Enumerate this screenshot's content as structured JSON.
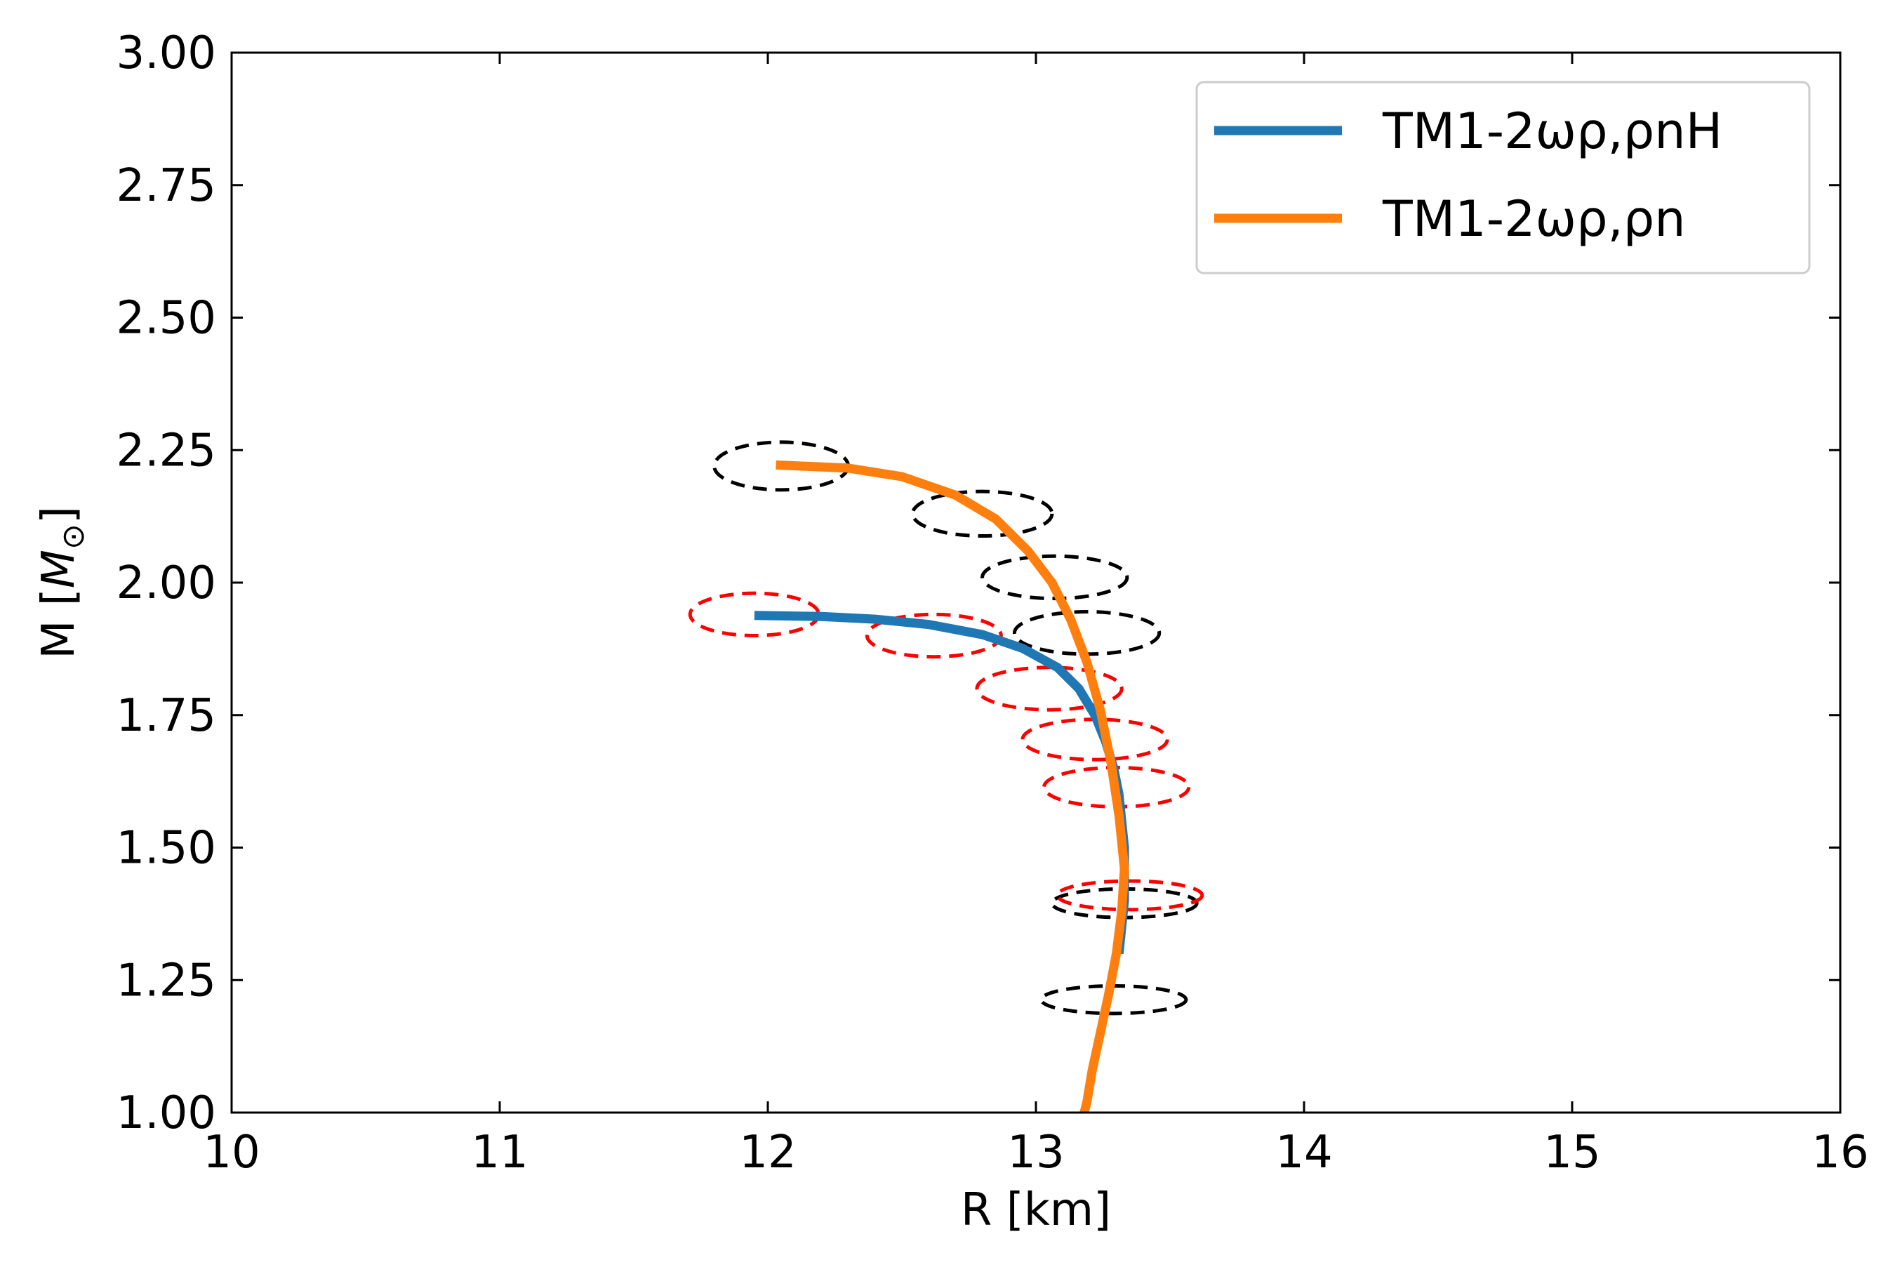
{
  "chart_data": {
    "type": "line",
    "title": "",
    "xlabel": "R [km]",
    "ylabel_text": "M [",
    "ylabel_symbol": "M",
    "ylabel_subscript": "⊙",
    "ylabel_close": "]",
    "xlim": [
      10,
      16
    ],
    "ylim": [
      1.0,
      3.0
    ],
    "xticks": [
      10,
      11,
      12,
      13,
      14,
      15,
      16
    ],
    "xtick_labels": [
      "10",
      "11",
      "12",
      "13",
      "14",
      "15",
      "16"
    ],
    "yticks": [
      1.0,
      1.25,
      1.5,
      1.75,
      2.0,
      2.25,
      2.5,
      2.75,
      3.0
    ],
    "ytick_labels": [
      "1.00",
      "1.25",
      "1.50",
      "1.75",
      "2.00",
      "2.25",
      "2.50",
      "2.75",
      "3.00"
    ],
    "grid": false,
    "legend_position": "top-right",
    "series": [
      {
        "name": "TM1-2ωρ,ρnH",
        "color": "#1f77b4",
        "points": [
          [
            11.95,
            1.938
          ],
          [
            12.2,
            1.936
          ],
          [
            12.4,
            1.931
          ],
          [
            12.6,
            1.921
          ],
          [
            12.8,
            1.902
          ],
          [
            12.95,
            1.876
          ],
          [
            13.08,
            1.84
          ],
          [
            13.16,
            1.8
          ],
          [
            13.22,
            1.75
          ],
          [
            13.26,
            1.7
          ],
          [
            13.29,
            1.65
          ],
          [
            13.31,
            1.6
          ],
          [
            13.32,
            1.55
          ],
          [
            13.33,
            1.5
          ],
          [
            13.33,
            1.45
          ],
          [
            13.33,
            1.4
          ],
          [
            13.32,
            1.35
          ],
          [
            13.31,
            1.3
          ]
        ]
      },
      {
        "name": "TM1-2ωρ,ρn",
        "color": "#ff7f0e",
        "points": [
          [
            12.03,
            2.222
          ],
          [
            12.3,
            2.216
          ],
          [
            12.5,
            2.2
          ],
          [
            12.7,
            2.165
          ],
          [
            12.85,
            2.12
          ],
          [
            12.97,
            2.06
          ],
          [
            13.06,
            2.0
          ],
          [
            13.13,
            1.93
          ],
          [
            13.19,
            1.85
          ],
          [
            13.24,
            1.76
          ],
          [
            13.28,
            1.66
          ],
          [
            13.31,
            1.56
          ],
          [
            13.33,
            1.46
          ],
          [
            13.32,
            1.38
          ],
          [
            13.3,
            1.3
          ],
          [
            13.27,
            1.22
          ],
          [
            13.24,
            1.15
          ],
          [
            13.21,
            1.08
          ],
          [
            13.19,
            1.02
          ],
          [
            13.18,
            1.0
          ]
        ]
      }
    ],
    "ellipses": [
      {
        "color": "#000000",
        "cx": 12.05,
        "cy": 2.22,
        "rx": 0.25,
        "ry": 0.045
      },
      {
        "color": "#000000",
        "cx": 12.8,
        "cy": 2.13,
        "rx": 0.26,
        "ry": 0.042
      },
      {
        "color": "#000000",
        "cx": 13.07,
        "cy": 2.01,
        "rx": 0.27,
        "ry": 0.04
      },
      {
        "color": "#000000",
        "cx": 13.19,
        "cy": 1.905,
        "rx": 0.27,
        "ry": 0.04
      },
      {
        "color": "#000000",
        "cx": 13.33,
        "cy": 1.395,
        "rx": 0.27,
        "ry": 0.027
      },
      {
        "color": "#000000",
        "cx": 13.29,
        "cy": 1.213,
        "rx": 0.27,
        "ry": 0.026
      },
      {
        "color": "#ff0000",
        "cx": 11.95,
        "cy": 1.94,
        "rx": 0.24,
        "ry": 0.04
      },
      {
        "color": "#ff0000",
        "cx": 12.62,
        "cy": 1.9,
        "rx": 0.25,
        "ry": 0.04
      },
      {
        "color": "#ff0000",
        "cx": 13.05,
        "cy": 1.8,
        "rx": 0.27,
        "ry": 0.04
      },
      {
        "color": "#ff0000",
        "cx": 13.22,
        "cy": 1.704,
        "rx": 0.27,
        "ry": 0.038
      },
      {
        "color": "#ff0000",
        "cx": 13.3,
        "cy": 1.614,
        "rx": 0.27,
        "ry": 0.037
      },
      {
        "color": "#ff0000",
        "cx": 13.35,
        "cy": 1.41,
        "rx": 0.27,
        "ry": 0.027
      }
    ]
  }
}
